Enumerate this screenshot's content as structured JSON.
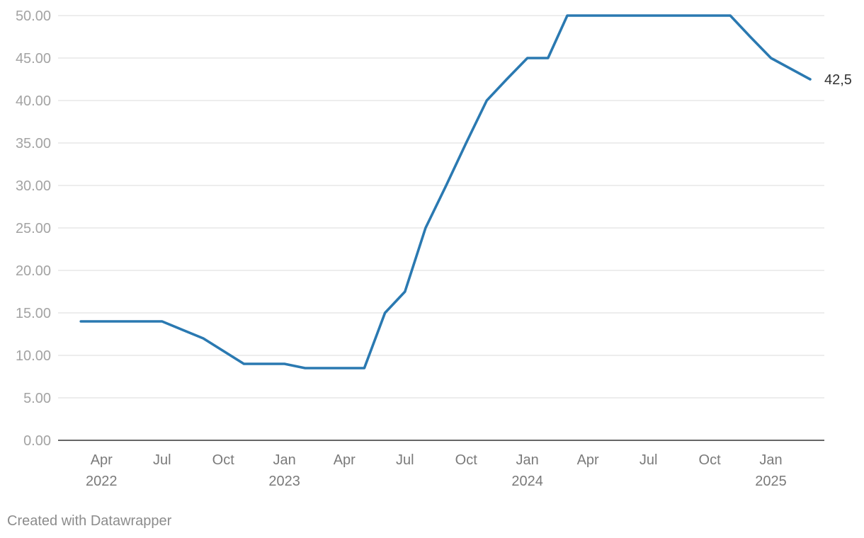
{
  "chart_data": {
    "type": "line",
    "ylim": [
      0,
      50
    ],
    "yticks": [
      "0.00",
      "5.00",
      "10.00",
      "15.00",
      "20.00",
      "25.00",
      "30.00",
      "35.00",
      "40.00",
      "45.00",
      "50.00"
    ],
    "grid": true,
    "x_ticks": [
      {
        "date": "2022-04-01",
        "label": "Apr",
        "year": "2022"
      },
      {
        "date": "2022-07-01",
        "label": "Jul",
        "year": ""
      },
      {
        "date": "2022-10-01",
        "label": "Oct",
        "year": ""
      },
      {
        "date": "2023-01-01",
        "label": "Jan",
        "year": "2023"
      },
      {
        "date": "2023-04-01",
        "label": "Apr",
        "year": ""
      },
      {
        "date": "2023-07-01",
        "label": "Jul",
        "year": ""
      },
      {
        "date": "2023-10-01",
        "label": "Oct",
        "year": ""
      },
      {
        "date": "2024-01-01",
        "label": "Jan",
        "year": "2024"
      },
      {
        "date": "2024-04-01",
        "label": "Apr",
        "year": ""
      },
      {
        "date": "2024-07-01",
        "label": "Jul",
        "year": ""
      },
      {
        "date": "2024-10-01",
        "label": "Oct",
        "year": ""
      },
      {
        "date": "2025-01-01",
        "label": "Jan",
        "year": "2025"
      }
    ],
    "series": [
      {
        "color": "#2a79b1",
        "end_label": "42,5",
        "points": [
          {
            "x": "2022-03-01",
            "y": 14
          },
          {
            "x": "2022-07-01",
            "y": 14
          },
          {
            "x": "2022-09-01",
            "y": 12
          },
          {
            "x": "2022-11-01",
            "y": 9
          },
          {
            "x": "2023-01-01",
            "y": 9
          },
          {
            "x": "2023-02-01",
            "y": 8.5
          },
          {
            "x": "2023-05-01",
            "y": 8.5
          },
          {
            "x": "2023-06-01",
            "y": 15
          },
          {
            "x": "2023-07-01",
            "y": 17.5
          },
          {
            "x": "2023-08-01",
            "y": 25
          },
          {
            "x": "2023-09-01",
            "y": 30
          },
          {
            "x": "2023-10-01",
            "y": 35
          },
          {
            "x": "2023-11-01",
            "y": 40
          },
          {
            "x": "2023-12-01",
            "y": 42.5
          },
          {
            "x": "2024-01-01",
            "y": 45
          },
          {
            "x": "2024-02-01",
            "y": 45
          },
          {
            "x": "2024-03-01",
            "y": 50
          },
          {
            "x": "2024-11-01",
            "y": 50
          },
          {
            "x": "2024-12-01",
            "y": 47.5
          },
          {
            "x": "2025-01-01",
            "y": 45
          },
          {
            "x": "2025-03-01",
            "y": 42.5
          }
        ]
      }
    ]
  },
  "credit": "Created with Datawrapper"
}
